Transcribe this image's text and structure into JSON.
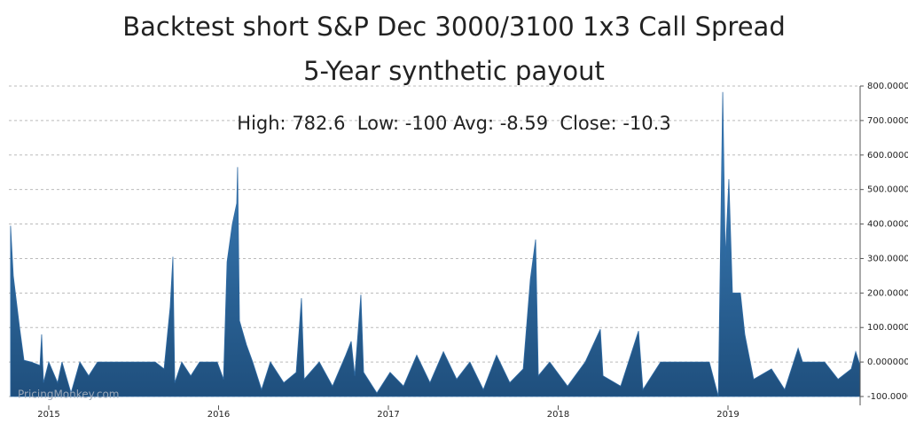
{
  "chart_data": {
    "type": "area",
    "title": "Backtest short S&P Dec 3000/3100 1x3 Call Spread",
    "subtitle": "5-Year synthetic payout",
    "annotation": "High: 782.6  Low: -100 Avg: -8.59  Close: -10.3",
    "watermark": "PricingMonkey.com",
    "color": "#2f6aa3",
    "x": [
      2014.775,
      2014.791,
      2014.828,
      2014.854,
      2014.896,
      2014.922,
      2014.948,
      2014.958,
      2014.969,
      2015.0,
      2015.052,
      2015.078,
      2015.131,
      2015.183,
      2015.235,
      2015.287,
      2015.339,
      2015.496,
      2015.627,
      2015.679,
      2015.715,
      2015.731,
      2015.742,
      2015.783,
      2015.836,
      2015.888,
      2015.992,
      2016.029,
      2016.05,
      2016.081,
      2016.107,
      2016.112,
      2016.123,
      2016.164,
      2016.201,
      2016.253,
      2016.305,
      2016.384,
      2016.457,
      2016.488,
      2016.504,
      2016.593,
      2016.671,
      2016.749,
      2016.781,
      2016.802,
      2016.838,
      2016.854,
      2016.932,
      2017.01,
      2017.089,
      2017.167,
      2017.245,
      2017.324,
      2017.402,
      2017.48,
      2017.559,
      2017.637,
      2017.715,
      2017.794,
      2017.836,
      2017.867,
      2017.883,
      2017.95,
      2018.055,
      2018.159,
      2018.248,
      2018.264,
      2018.368,
      2018.473,
      2018.499,
      2018.603,
      2018.786,
      2018.89,
      2018.943,
      2018.969,
      2018.984,
      2019.005,
      2019.026,
      2019.073,
      2019.099,
      2019.151,
      2019.256,
      2019.334,
      2019.413,
      2019.439,
      2019.569,
      2019.648,
      2019.726,
      2019.752,
      2019.778
    ],
    "values": [
      395,
      250,
      100,
      5,
      0,
      -5,
      -10,
      80,
      -60,
      0,
      -60,
      0,
      -90,
      0,
      -40,
      0,
      0,
      0,
      0,
      -20,
      160,
      305,
      -60,
      0,
      -40,
      0,
      0,
      -50,
      290,
      400,
      460,
      565,
      120,
      50,
      0,
      -80,
      0,
      -60,
      -30,
      185,
      -50,
      0,
      -70,
      20,
      60,
      -40,
      195,
      -30,
      -90,
      -30,
      -70,
      20,
      -60,
      30,
      -50,
      0,
      -80,
      20,
      -60,
      -20,
      240,
      355,
      -40,
      0,
      -70,
      0,
      95,
      -40,
      -70,
      90,
      -80,
      0,
      0,
      0,
      -100,
      782.6,
      300,
      530,
      200,
      200,
      80,
      -50,
      -20,
      -80,
      40,
      0,
      0,
      -50,
      -20,
      30,
      -10.3
    ],
    "xlim": [
      2014.765,
      2019.778
    ],
    "xticks": [
      2015,
      2016,
      2017,
      2018,
      2019
    ],
    "ylim": [
      -100,
      800
    ],
    "yticks": [
      {
        "value": -100,
        "label": "-100.000000"
      },
      {
        "value": 0,
        "label": "0.000000"
      },
      {
        "value": 100,
        "label": "100.000000"
      },
      {
        "value": 200,
        "label": "200.000000"
      },
      {
        "value": 300,
        "label": "300.000000"
      },
      {
        "value": 400,
        "label": "400.000000"
      },
      {
        "value": 500,
        "label": "500.000000"
      },
      {
        "value": 600,
        "label": "600.000000"
      },
      {
        "value": 700,
        "label": "700.000000"
      },
      {
        "value": 800,
        "label": "800.000000"
      }
    ],
    "grid": true
  }
}
